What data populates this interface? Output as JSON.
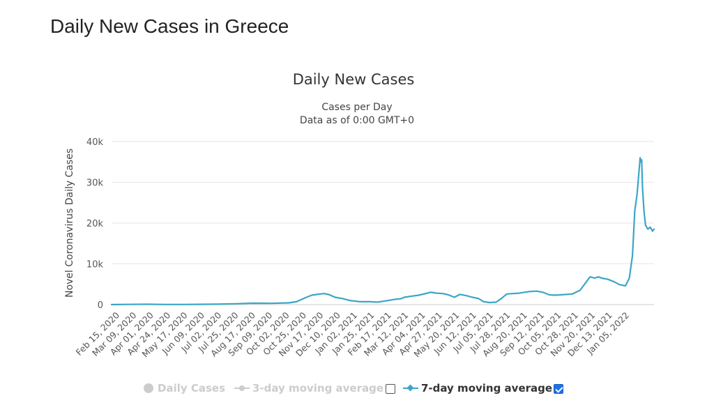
{
  "page": {
    "heading": "Daily New Cases in Greece"
  },
  "chart_data": {
    "type": "line",
    "title": "Daily New Cases",
    "subtitle_lines": [
      "Cases per Day",
      "Data as of 0:00 GMT+0"
    ],
    "ylabel": "Novel Coronavirus Daily Cases",
    "xlabel": "",
    "ylim": [
      0,
      40000
    ],
    "y_ticks": [
      0,
      10000,
      20000,
      30000,
      40000
    ],
    "y_tick_labels": [
      "0",
      "10k",
      "20k",
      "30k",
      "40k"
    ],
    "x_range": [
      "2020-02-15",
      "2022-01-19"
    ],
    "x_tick_labels": [
      "Feb 15, 2020",
      "Mar 09, 2020",
      "Apr 01, 2020",
      "Apr 24, 2020",
      "May 17, 2020",
      "Jun 09, 2020",
      "Jul 02, 2020",
      "Jul 25, 2020",
      "Aug 17, 2020",
      "Sep 09, 2020",
      "Oct 02, 2020",
      "Oct 25, 2020",
      "Nov 17, 2020",
      "Dec 10, 2020",
      "Jan 02, 2021",
      "Jan 25, 2021",
      "Feb 17, 2021",
      "Mar 12, 2021",
      "Apr 04, 2021",
      "Apr 27, 2021",
      "May 20, 2021",
      "Jun 12, 2021",
      "Jul 05, 2021",
      "Jul 28, 2021",
      "Aug 20, 2021",
      "Sep 12, 2021",
      "Oct 05, 2021",
      "Oct 28, 2021",
      "Nov 20, 2021",
      "Dec 13, 2021",
      "Jan 05, 2022"
    ],
    "grid": true,
    "legend_position": "bottom-center",
    "series": [
      {
        "name": "7-day moving average",
        "color": "#3aa6c6",
        "x": [
          "2020-02-15",
          "2020-03-09",
          "2020-04-01",
          "2020-04-24",
          "2020-05-17",
          "2020-06-09",
          "2020-07-02",
          "2020-07-25",
          "2020-08-17",
          "2020-09-09",
          "2020-10-02",
          "2020-10-12",
          "2020-10-25",
          "2020-11-01",
          "2020-11-08",
          "2020-11-17",
          "2020-11-24",
          "2020-12-01",
          "2020-12-10",
          "2020-12-20",
          "2021-01-02",
          "2021-01-15",
          "2021-01-25",
          "2021-02-05",
          "2021-02-17",
          "2021-02-24",
          "2021-03-01",
          "2021-03-12",
          "2021-03-20",
          "2021-04-04",
          "2021-04-12",
          "2021-04-20",
          "2021-04-27",
          "2021-05-05",
          "2021-05-12",
          "2021-05-20",
          "2021-05-28",
          "2021-06-05",
          "2021-06-12",
          "2021-06-20",
          "2021-06-28",
          "2021-07-05",
          "2021-07-12",
          "2021-07-20",
          "2021-07-28",
          "2021-08-10",
          "2021-08-20",
          "2021-08-28",
          "2021-09-05",
          "2021-09-12",
          "2021-09-20",
          "2021-10-05",
          "2021-10-15",
          "2021-10-28",
          "2021-11-03",
          "2021-11-08",
          "2021-11-12",
          "2021-11-20",
          "2021-11-28",
          "2021-12-05",
          "2021-12-13",
          "2021-12-18",
          "2021-12-22",
          "2021-12-25",
          "2021-12-28",
          "2022-01-01",
          "2022-01-02",
          "2022-01-03",
          "2022-01-04",
          "2022-01-06",
          "2022-01-08",
          "2022-01-11",
          "2022-01-14",
          "2022-01-17",
          "2022-01-19"
        ],
        "values": [
          0,
          50,
          80,
          30,
          30,
          60,
          100,
          200,
          350,
          300,
          420,
          700,
          1800,
          2300,
          2500,
          2700,
          2400,
          1800,
          1500,
          1000,
          700,
          700,
          600,
          900,
          1300,
          1400,
          1800,
          2100,
          2300,
          3000,
          2800,
          2700,
          2400,
          1800,
          2500,
          2200,
          1800,
          1500,
          700,
          500,
          600,
          1500,
          2600,
          2700,
          2800,
          3200,
          3300,
          3000,
          2400,
          2300,
          2400,
          2600,
          3500,
          6800,
          6500,
          6800,
          6500,
          6200,
          5600,
          4900,
          4600,
          6500,
          12000,
          23000,
          27000,
          36000,
          35000,
          35500,
          29000,
          23000,
          19500,
          18500,
          19000,
          18000,
          18500
        ]
      }
    ]
  },
  "legend": {
    "items": [
      {
        "label": "Daily Cases",
        "enabled": false
      },
      {
        "label": "3-day moving average",
        "enabled": false
      },
      {
        "label": "7-day moving average",
        "enabled": true
      }
    ]
  }
}
